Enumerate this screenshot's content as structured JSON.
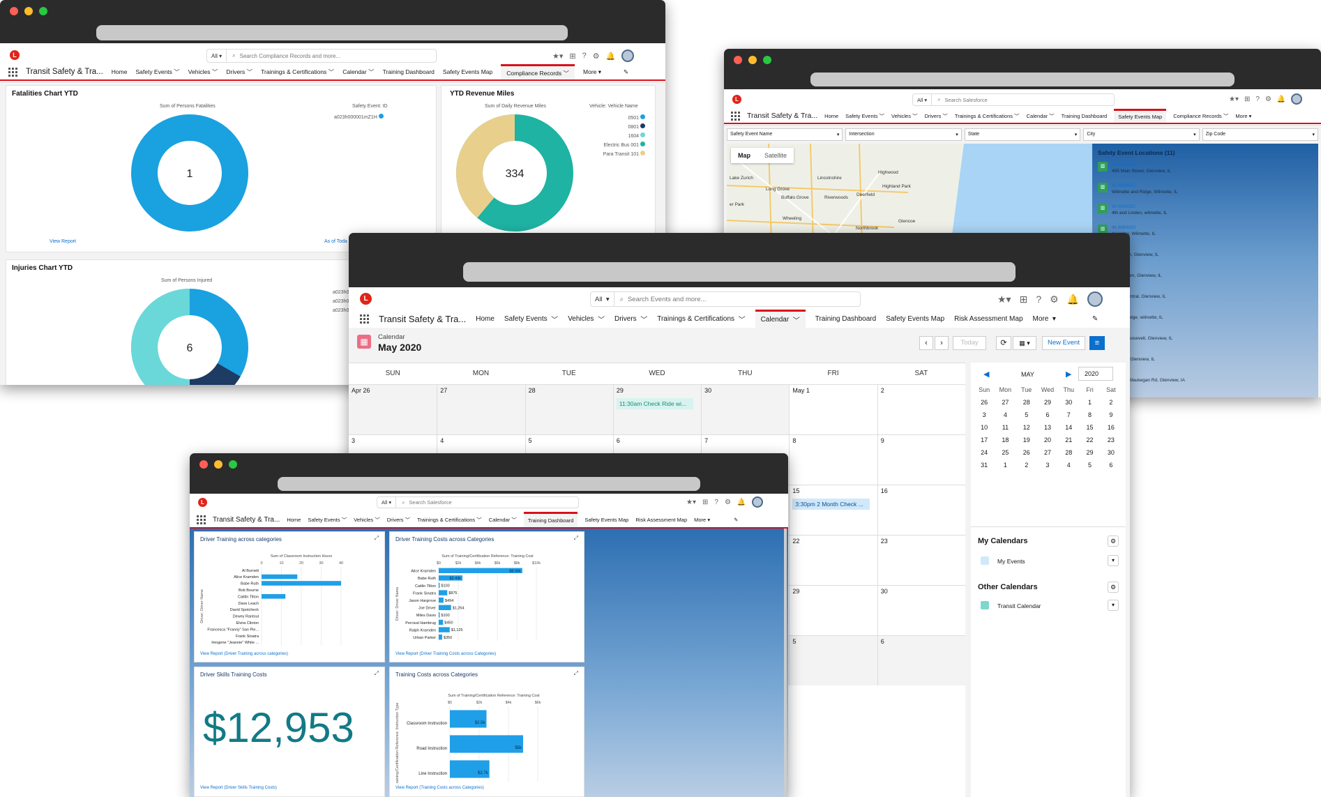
{
  "app_name": "Transit Safety & Tra...",
  "logo_letter": "L",
  "search_scope": "All",
  "more_label": "More",
  "win1": {
    "search_placeholder": "Search Compliance Records and more...",
    "tabs": [
      "Home",
      "Safety Events",
      "Vehicles",
      "Drivers",
      "Trainings & Certifications",
      "Calendar",
      "Training Dashboard",
      "Safety Events Map",
      "Compliance Records"
    ],
    "fatalities": {
      "title": "Fatalities Chart YTD",
      "metric_label": "Sum of Persons Fatalities",
      "legend_header": "Safety Event: ID",
      "legend_item": "a023h000001mZ1H",
      "center_value": "1",
      "link": "View Report",
      "as_of": "As of Toda"
    },
    "revenue": {
      "title": "YTD Revenue Miles",
      "metric_label": "Sum of Daily Revenue Miles",
      "legend_header": "Vehicle: Vehicle Name",
      "legend_items": [
        "0501",
        "0801",
        "1604",
        "Electric Bus 001",
        "Para Transit 101"
      ],
      "center_value": "334"
    },
    "injuries": {
      "title": "Injuries Chart YTD",
      "metric_label": "Sum of Persons Injured",
      "legend_items": [
        "a023h0",
        "a023h0",
        "a023h0"
      ],
      "center_value": "6"
    }
  },
  "win2": {
    "search_placeholder": "Search Salesforce",
    "tabs": [
      "Home",
      "Safety Events",
      "Vehicles",
      "Drivers",
      "Trainings & Certifications",
      "Calendar",
      "Training Dashboard",
      "Safety Events Map",
      "Compliance Records"
    ],
    "filters": [
      "Safety Event Name",
      "Intersection",
      "State",
      "City",
      "Zip Code"
    ],
    "map_buttons": [
      "Map",
      "Satellite"
    ],
    "map_places": [
      "Highwood",
      "Lincolnshire",
      "Highland Park",
      "Long Grove",
      "Buffalo Grove",
      "Riverwoods",
      "Deerfield",
      "Wheeling",
      "Northbrook",
      "Glencoe",
      "Lake Zurich",
      "er Park"
    ],
    "locations_title": "Safety Event Locations (11)",
    "locations": [
      {
        "id": "IN-0000026",
        "addr": "455 Main Street, Glenview, IL"
      },
      {
        "id": "IN-0000021",
        "addr": "Wilmette and Ridge, Wilmette, IL"
      },
      {
        "id": "IN-0000022",
        "addr": "4th and Linden, wilmette, IL"
      },
      {
        "id": "IN-0000023",
        "addr": "d Linden, Wilmette, IL"
      },
      {
        "id": "0028",
        "addr": "ashington, Glenview, IL"
      },
      {
        "id": "0010",
        "addr": "d Pfingsten, Glenview, IL"
      },
      {
        "id": "0004",
        "addr": "s and Central, Glenview, IL"
      },
      {
        "id": "0025",
        "addr": "te and Ridge, wilmette, IL"
      },
      {
        "id": "0008",
        "addr": "w and Roosevelt, Glenview, IL"
      },
      {
        "id": "0027",
        "addr": "n Street, Glenview, IL"
      },
      {
        "id": "0005",
        "addr": "ill, 7525 Waukegan Rd, Glenview, IA"
      }
    ]
  },
  "win3": {
    "search_placeholder": "Search Events and more...",
    "tabs": [
      "Home",
      "Safety Events",
      "Vehicles",
      "Drivers",
      "Trainings & Certifications",
      "Calendar",
      "Training Dashboard",
      "Safety Events Map",
      "Risk Assessment Map"
    ],
    "cal_label": "Calendar",
    "cal_month": "May 2020",
    "today": "Today",
    "new_event": "New Event",
    "weekdays": [
      "SUN",
      "MON",
      "TUE",
      "WED",
      "THU",
      "FRI",
      "SAT"
    ],
    "week_rows": [
      [
        "Apr 26",
        "27",
        "28",
        "29",
        "30",
        "May 1",
        "2"
      ],
      [
        "3",
        "4",
        "5",
        "6",
        "7",
        "8",
        "9"
      ],
      [
        "10",
        "11",
        "12",
        "13",
        "14",
        "15",
        "16"
      ],
      [
        "17",
        "18",
        "19",
        "20",
        "21",
        "22",
        "23"
      ],
      [
        "24",
        "25",
        "26",
        "27",
        "28",
        "29",
        "30"
      ],
      [
        "31",
        "1",
        "2",
        "3",
        "4",
        "5",
        "6"
      ]
    ],
    "events": [
      {
        "label": "11:30am Check Ride wi..."
      },
      {
        "label": "3:30pm 2 Month Check ..."
      }
    ],
    "mini_month": "MAY",
    "mini_year": "2020",
    "mini_days": [
      "Sun",
      "Mon",
      "Tue",
      "Wed",
      "Thu",
      "Fri",
      "Sat"
    ],
    "mini_rows": [
      [
        "26",
        "27",
        "28",
        "29",
        "30",
        "1",
        "2"
      ],
      [
        "3",
        "4",
        "5",
        "6",
        "7",
        "8",
        "9"
      ],
      [
        "10",
        "11",
        "12",
        "13",
        "14",
        "15",
        "16"
      ],
      [
        "17",
        "18",
        "19",
        "20",
        "21",
        "22",
        "23"
      ],
      [
        "24",
        "25",
        "26",
        "27",
        "28",
        "29",
        "30"
      ],
      [
        "31",
        "1",
        "2",
        "3",
        "4",
        "5",
        "6"
      ]
    ],
    "my_calendars": "My Calendars",
    "my_events": "My Events",
    "other_calendars": "Other Calendars",
    "transit_calendar": "Transit Calendar"
  },
  "win4": {
    "search_placeholder": "Search Salesforce",
    "tabs": [
      "Home",
      "Safety Events",
      "Vehicles",
      "Drivers",
      "Trainings & Certifications",
      "Calendar",
      "Training Dashboard",
      "Safety Events Map",
      "Risk Assessment Map"
    ],
    "hours_title": "Driver Training across categories",
    "hours_link": "View Report (Driver Training across categories)",
    "costs_title": "Driver Training Costs across Categories",
    "costs_link": "View Report (Driver Training Costs across Categories)",
    "skills_title": "Driver Skills Training Costs",
    "skills_value": "$12,953",
    "skills_link": "View Report (Driver Skills Training Costs)",
    "cat_title": "Training Costs across Categories",
    "cat_link": "View Report (Training Costs across Categories)"
  },
  "colors": {
    "accent": "#d8101c",
    "donut_blue": "#1aa1e0",
    "donut_teal": "#1eb3a3",
    "donut_sand": "#e8d08c",
    "donut_light": "#6ad8d8",
    "donut_navy": "#1d3b63",
    "bar": "#1f9fe8",
    "link": "#0b6fce",
    "money": "#127a86"
  },
  "chart_data": [
    {
      "type": "bar",
      "title": "Driver Training across categories",
      "xlabel": "Sum of Classroom Instruction Hours",
      "ylabel": "Driver: Driver Name",
      "xlim": [
        0,
        40
      ],
      "xticks": [
        "0",
        "10",
        "20",
        "30",
        "40"
      ],
      "categories": [
        "Al Burnett",
        "Alice Kramden",
        "Babe Ruth",
        "Bob Bourne",
        "Caitlin Tilton",
        "Dave Leach",
        "David Spotcheck",
        "Dewey Rantoul",
        "Elvira Clinton",
        "Francesca \"Franny\" San Pie...",
        "Frank Sinatra",
        "Imogene \"Jeannie\" White ..."
      ],
      "values": [
        0,
        18,
        40,
        0,
        12,
        0,
        0,
        0,
        0,
        0,
        0,
        0
      ]
    },
    {
      "type": "bar",
      "title": "Driver Training Costs across Categories",
      "xlabel": "Sum of Training/Certification Reference: Training Cost",
      "ylabel": "Driver: Driver Name",
      "xlim": [
        0,
        10000
      ],
      "xticks": [
        "$0",
        "$2k",
        "$4k",
        "$6k",
        "$8k",
        "$10k"
      ],
      "categories": [
        "Alice Kramden",
        "Babe Ruth",
        "Caitlin Tilton",
        "Frank Sinatra",
        "Jason Hargrove",
        "Joe Driver",
        "Miles Davis",
        "Percival Hambrug",
        "Ralph Kramden",
        "Urban Parker"
      ],
      "values": [
        8560,
        2430,
        100,
        875,
        494,
        1264,
        100,
        450,
        1125,
        350
      ],
      "labels": [
        "$8.56k",
        "$2.43k",
        "$100",
        "$875",
        "$494",
        "$1,264",
        "$100",
        "$450",
        "$1,125",
        "$350"
      ]
    },
    {
      "type": "bar",
      "title": "Training Costs across Categories",
      "xlabel": "Sum of Training/Certification Reference: Training Cost",
      "ylabel": "Training/Certification Reference: Instruction Type",
      "xlim": [
        0,
        6000
      ],
      "xticks": [
        "$0",
        "$2k",
        "$4k",
        "$6k"
      ],
      "categories": [
        "Classroom Instruction",
        "Road Instruction",
        "Line Instruction"
      ],
      "values": [
        2500,
        5000,
        2700
      ],
      "labels": [
        "$2.5k",
        "$5k",
        "$2.7k"
      ]
    },
    {
      "type": "pie",
      "title": "Fatalities Chart YTD",
      "categories": [
        "a023h000001mZ1H"
      ],
      "values": [
        1
      ]
    },
    {
      "type": "pie",
      "title": "YTD Revenue Miles",
      "categories": [
        "0501",
        "0801",
        "1604",
        "Electric Bus 001",
        "Para Transit 101"
      ],
      "values": [
        0,
        0,
        0,
        218,
        116
      ]
    },
    {
      "type": "pie",
      "title": "Injuries Chart YTD",
      "values": [
        3,
        1,
        2
      ]
    }
  ]
}
